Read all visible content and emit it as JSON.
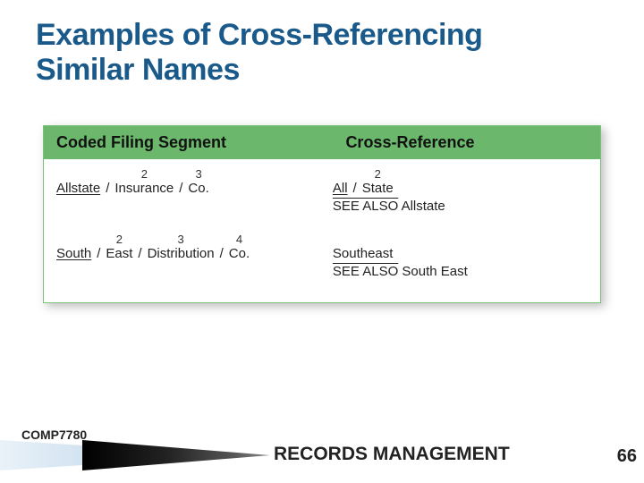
{
  "title_line1": "Examples of Cross-Referencing",
  "title_line2": "Similar Names",
  "colors": {
    "title": "#1a5a8a",
    "header_bg": "#6bb76b",
    "table_border": "#7bbf7b",
    "background": "#ffffff",
    "text": "#222222"
  },
  "table": {
    "headers": [
      "Coded Filing Segment",
      "Cross-Reference"
    ],
    "rows": [
      {
        "segment_units": [
          {
            "num": "",
            "word": "Allstate",
            "underline": true
          },
          {
            "num": "2",
            "word": "Insurance"
          },
          {
            "num": "3",
            "word": "Co."
          }
        ],
        "cross_units": [
          {
            "num": "",
            "word": "All",
            "underline": true
          },
          {
            "num": "2",
            "word": "State"
          }
        ],
        "see_also_overline": "SEE ALSO",
        "see_also_rest": " Allstate"
      },
      {
        "segment_units": [
          {
            "num": "",
            "word": "South",
            "underline": true
          },
          {
            "num": "2",
            "word": "East"
          },
          {
            "num": "3",
            "word": "Distribution"
          },
          {
            "num": "4",
            "word": "Co."
          }
        ],
        "cross_units": [
          {
            "num": "",
            "word": "Southeast"
          }
        ],
        "see_also_overline": "SEE ALSO",
        "see_also_rest": " South East"
      }
    ]
  },
  "footer": {
    "course_code": "COMP7780",
    "center": "RECORDS MANAGEMENT",
    "page": "66"
  }
}
